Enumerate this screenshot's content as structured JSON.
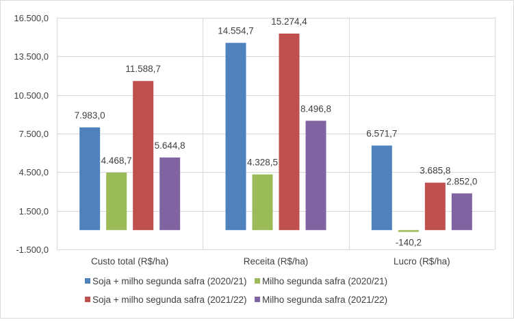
{
  "chart_data": {
    "type": "bar",
    "categories": [
      "Custo total (R$/ha)",
      "Receita (R$/ha)",
      "Lucro (R$/ha)"
    ],
    "series": [
      {
        "name": "Soja + milho segunda safra (2020/21)",
        "color": "#4F81BD",
        "values": [
          7983.0,
          14554.7,
          6571.7
        ],
        "labels": [
          "7.983,0",
          "14.554,7",
          "6.571,7"
        ]
      },
      {
        "name": "Milho segunda safra (2020/21)",
        "color": "#9BBB59",
        "values": [
          4468.7,
          4328.5,
          -140.2
        ],
        "labels": [
          "4.468,7",
          "4.328,5",
          "-140,2"
        ]
      },
      {
        "name": "Soja + milho segunda safra (2021/22)",
        "color": "#C0504D",
        "values": [
          11588.7,
          15274.4,
          3685.8
        ],
        "labels": [
          "11.588,7",
          "15.274,4",
          "3.685,8"
        ]
      },
      {
        "name": "Milho segunda safra (2021/22)",
        "color": "#8064A2",
        "values": [
          5644.8,
          8496.8,
          2852.0
        ],
        "labels": [
          "5.644,8",
          "8.496,8",
          "2.852,0"
        ]
      }
    ],
    "ylim": [
      -1500,
      16500
    ],
    "yticks": [
      -1500,
      1500,
      4500,
      7500,
      10500,
      13500,
      16500
    ],
    "ytick_labels": [
      "-1.500,0",
      "1.500,0",
      "4.500,0",
      "7.500,0",
      "10.500,0",
      "13.500,0",
      "16.500,0"
    ],
    "grid": true,
    "legend_position": "bottom"
  }
}
